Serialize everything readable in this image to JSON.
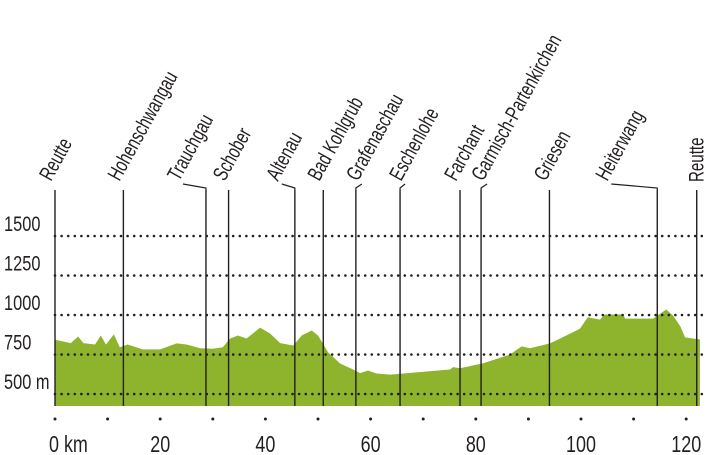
{
  "chart_data": {
    "type": "area",
    "title": "",
    "xlabel": "",
    "ylabel": "",
    "x_unit_label": "0 km",
    "y_unit_label": "500 m",
    "xlim": [
      0,
      122.6
    ],
    "ylim": [
      420,
      1500
    ],
    "grid": "horizontal dotted",
    "fill_color": "#8db42c",
    "x_ticks": [
      {
        "value": 0,
        "label": "0 km"
      },
      {
        "value": 20,
        "label": "20"
      },
      {
        "value": 40,
        "label": "40"
      },
      {
        "value": 60,
        "label": "60"
      },
      {
        "value": 80,
        "label": "80"
      },
      {
        "value": 100,
        "label": "100"
      },
      {
        "value": 120,
        "label": "120"
      }
    ],
    "x_minor_ticks": [
      0,
      10,
      20,
      30,
      40,
      50,
      60,
      70,
      80,
      90,
      100,
      110,
      120
    ],
    "y_ticks": [
      {
        "value": 1500,
        "label": "1500"
      },
      {
        "value": 1250,
        "label": "1250"
      },
      {
        "value": 1000,
        "label": "1000"
      },
      {
        "value": 750,
        "label": "750"
      },
      {
        "value": 500,
        "label": "500 m"
      }
    ],
    "places": [
      {
        "name": "Reutte",
        "km": 0
      },
      {
        "name": "Hohenschwangau",
        "km": 13
      },
      {
        "name": "Trauchgau",
        "km": 28.7
      },
      {
        "name": "Schober",
        "km": 33
      },
      {
        "name": "Altenau",
        "km": 45.6
      },
      {
        "name": "Bad Kohlgrub",
        "km": 51
      },
      {
        "name": "Grafenaschau",
        "km": 57.2
      },
      {
        "name": "Eschenlohe",
        "km": 65.6
      },
      {
        "name": "Farchant",
        "km": 77
      },
      {
        "name": "Garmisch-Partenkirchen",
        "km": 81
      },
      {
        "name": "Griesen",
        "km": 94
      },
      {
        "name": "Heiterwang",
        "km": 114.5
      },
      {
        "name": "Reutte",
        "km": 122
      }
    ],
    "profile": [
      [
        0,
        843
      ],
      [
        3,
        822
      ],
      [
        4.4,
        864
      ],
      [
        5.4,
        822
      ],
      [
        7.6,
        813
      ],
      [
        8.7,
        870
      ],
      [
        9.7,
        813
      ],
      [
        11.2,
        877
      ],
      [
        12.3,
        796
      ],
      [
        13.8,
        813
      ],
      [
        16.7,
        782
      ],
      [
        20,
        782
      ],
      [
        23.1,
        820
      ],
      [
        25,
        813
      ],
      [
        27.6,
        790
      ],
      [
        30,
        786
      ],
      [
        31.9,
        796
      ],
      [
        33.3,
        851
      ],
      [
        34.8,
        870
      ],
      [
        36.4,
        851
      ],
      [
        39,
        920
      ],
      [
        40.9,
        883
      ],
      [
        42.8,
        822
      ],
      [
        45.3,
        807
      ],
      [
        46.9,
        870
      ],
      [
        48.8,
        902
      ],
      [
        50,
        870
      ],
      [
        51.9,
        765
      ],
      [
        54.2,
        693
      ],
      [
        56.7,
        655
      ],
      [
        58,
        632
      ],
      [
        59.5,
        649
      ],
      [
        61.1,
        630
      ],
      [
        63.7,
        623
      ],
      [
        75.1,
        655
      ],
      [
        75.7,
        670
      ],
      [
        77,
        663
      ],
      [
        81.4,
        695
      ],
      [
        86.5,
        750
      ],
      [
        88.7,
        801
      ],
      [
        90.3,
        790
      ],
      [
        94.1,
        820
      ],
      [
        97.2,
        870
      ],
      [
        99.8,
        913
      ],
      [
        101.3,
        986
      ],
      [
        103.6,
        971
      ],
      [
        104.5,
        1003
      ],
      [
        108,
        1003
      ],
      [
        108.4,
        977
      ],
      [
        113.7,
        977
      ],
      [
        116.2,
        1035
      ],
      [
        117.5,
        997
      ],
      [
        118.9,
        927
      ],
      [
        119.8,
        858
      ],
      [
        122.6,
        845
      ]
    ]
  }
}
